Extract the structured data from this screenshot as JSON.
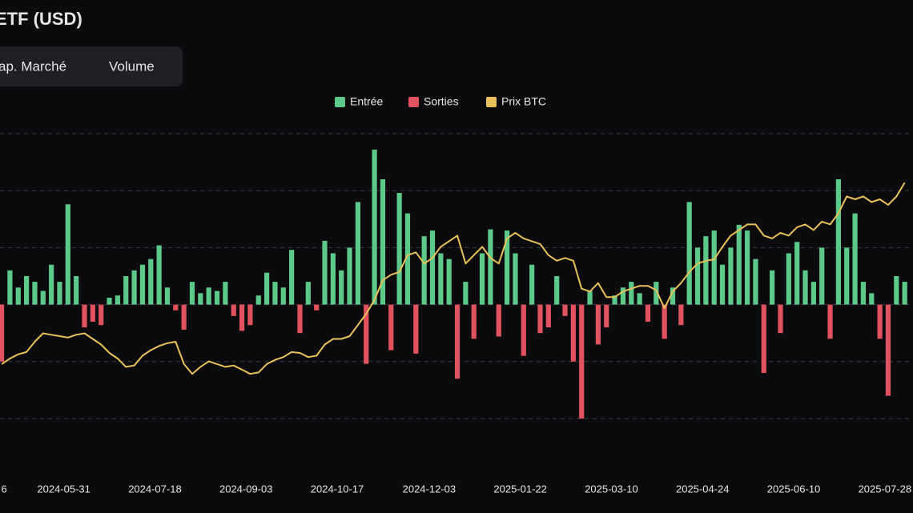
{
  "title": "ETF (USD)",
  "toggle": [
    "ap. Marché",
    "Volume"
  ],
  "chart_data": {
    "type": "bar-line",
    "series": [
      {
        "name": "Entrée",
        "color": "#5cc98a",
        "values": [
          null,
          300,
          150,
          250,
          200,
          120,
          350,
          200,
          880,
          250,
          null,
          null,
          null,
          60,
          80,
          250,
          300,
          350,
          400,
          520,
          150,
          null,
          null,
          200,
          100,
          150,
          120,
          200,
          null,
          null,
          null,
          80,
          280,
          200,
          150,
          480,
          null,
          200,
          null,
          560,
          450,
          300,
          500,
          900,
          null,
          1360,
          1100,
          null,
          980,
          800,
          null,
          600,
          650,
          450,
          400,
          null,
          200,
          null,
          450,
          660,
          null,
          650,
          450,
          null,
          350,
          null,
          null,
          250,
          null,
          null,
          null,
          120,
          null,
          null,
          80,
          150,
          200,
          100,
          null,
          200,
          null,
          150,
          null,
          900,
          500,
          600,
          650,
          350,
          500,
          700,
          650,
          400,
          null,
          300,
          null,
          450,
          550,
          300,
          200,
          500,
          null,
          1100,
          500,
          800,
          200,
          100,
          null,
          null,
          250,
          200
        ]
      },
      {
        "name": "Sorties",
        "color": "#e0525d",
        "values": [
          -500,
          null,
          null,
          null,
          null,
          null,
          null,
          null,
          null,
          null,
          -200,
          -150,
          -180,
          null,
          null,
          null,
          null,
          null,
          null,
          null,
          null,
          -50,
          -220,
          null,
          null,
          null,
          null,
          null,
          -100,
          -230,
          -180,
          null,
          null,
          null,
          null,
          null,
          -250,
          null,
          -50,
          null,
          null,
          null,
          null,
          null,
          -520,
          null,
          null,
          -400,
          null,
          null,
          -430,
          null,
          null,
          null,
          null,
          -650,
          null,
          -300,
          null,
          null,
          -280,
          null,
          null,
          -450,
          null,
          -250,
          -200,
          null,
          -100,
          -500,
          -1000,
          null,
          -350,
          -200,
          null,
          null,
          null,
          null,
          -150,
          null,
          -300,
          null,
          -180,
          null,
          null,
          null,
          null,
          null,
          null,
          null,
          null,
          null,
          -600,
          null,
          -250,
          null,
          null,
          null,
          null,
          null,
          -300,
          null,
          null,
          null,
          null,
          null,
          -300,
          -800,
          null,
          null
        ]
      },
      {
        "name": "Prix BTC",
        "color": "#e8c15a",
        "axis": "y2",
        "values": [
          58000,
          60000,
          61500,
          62300,
          66000,
          69000,
          68500,
          68000,
          67500,
          68500,
          69000,
          67000,
          65000,
          62000,
          60000,
          57000,
          57500,
          61000,
          63000,
          64500,
          65500,
          66000,
          58000,
          54500,
          57000,
          59000,
          58000,
          57000,
          57500,
          56000,
          54500,
          55000,
          58000,
          59500,
          60500,
          62300,
          62000,
          60500,
          61000,
          65000,
          67000,
          67000,
          68000,
          72000,
          76000,
          81000,
          88000,
          90000,
          91000,
          97000,
          98000,
          94000,
          96000,
          100000,
          102000,
          104000,
          94000,
          97000,
          100000,
          96000,
          94000,
          103000,
          105000,
          103000,
          102000,
          101000,
          97000,
          95000,
          96000,
          95000,
          85000,
          84000,
          87000,
          82000,
          82000,
          84000,
          85000,
          86000,
          86000,
          84500,
          78000,
          84000,
          87000,
          91000,
          94000,
          95000,
          95500,
          100000,
          104000,
          106000,
          108000,
          108000,
          104000,
          103000,
          105000,
          104000,
          107000,
          108000,
          106000,
          109000,
          108000,
          112000,
          118000,
          117000,
          118000,
          116000,
          117000,
          115000,
          118000,
          123000
        ]
      }
    ],
    "xlim": [
      -0.2,
      110
    ],
    "xticks": [
      {
        "value": 0.3,
        "label": "6"
      },
      {
        "value": 7.5,
        "label": "2024-05-31"
      },
      {
        "value": 18.5,
        "label": "2024-07-18"
      },
      {
        "value": 29.5,
        "label": "2024-09-03"
      },
      {
        "value": 40.5,
        "label": "2024-10-17"
      },
      {
        "value": 51.6,
        "label": "2024-12-03"
      },
      {
        "value": 62.6,
        "label": "2025-01-22"
      },
      {
        "value": 73.6,
        "label": "2025-03-10"
      },
      {
        "value": 84.6,
        "label": "2025-04-24"
      },
      {
        "value": 95.6,
        "label": "2025-06-10"
      },
      {
        "value": 106.6,
        "label": "2025-07-28"
      }
    ],
    "ylim": [
      -1000,
      1500
    ],
    "yticks": [
      -1000,
      -500,
      0,
      500,
      1000,
      1500
    ],
    "y2lim": [
      38500,
      140500
    ],
    "grid": true
  }
}
